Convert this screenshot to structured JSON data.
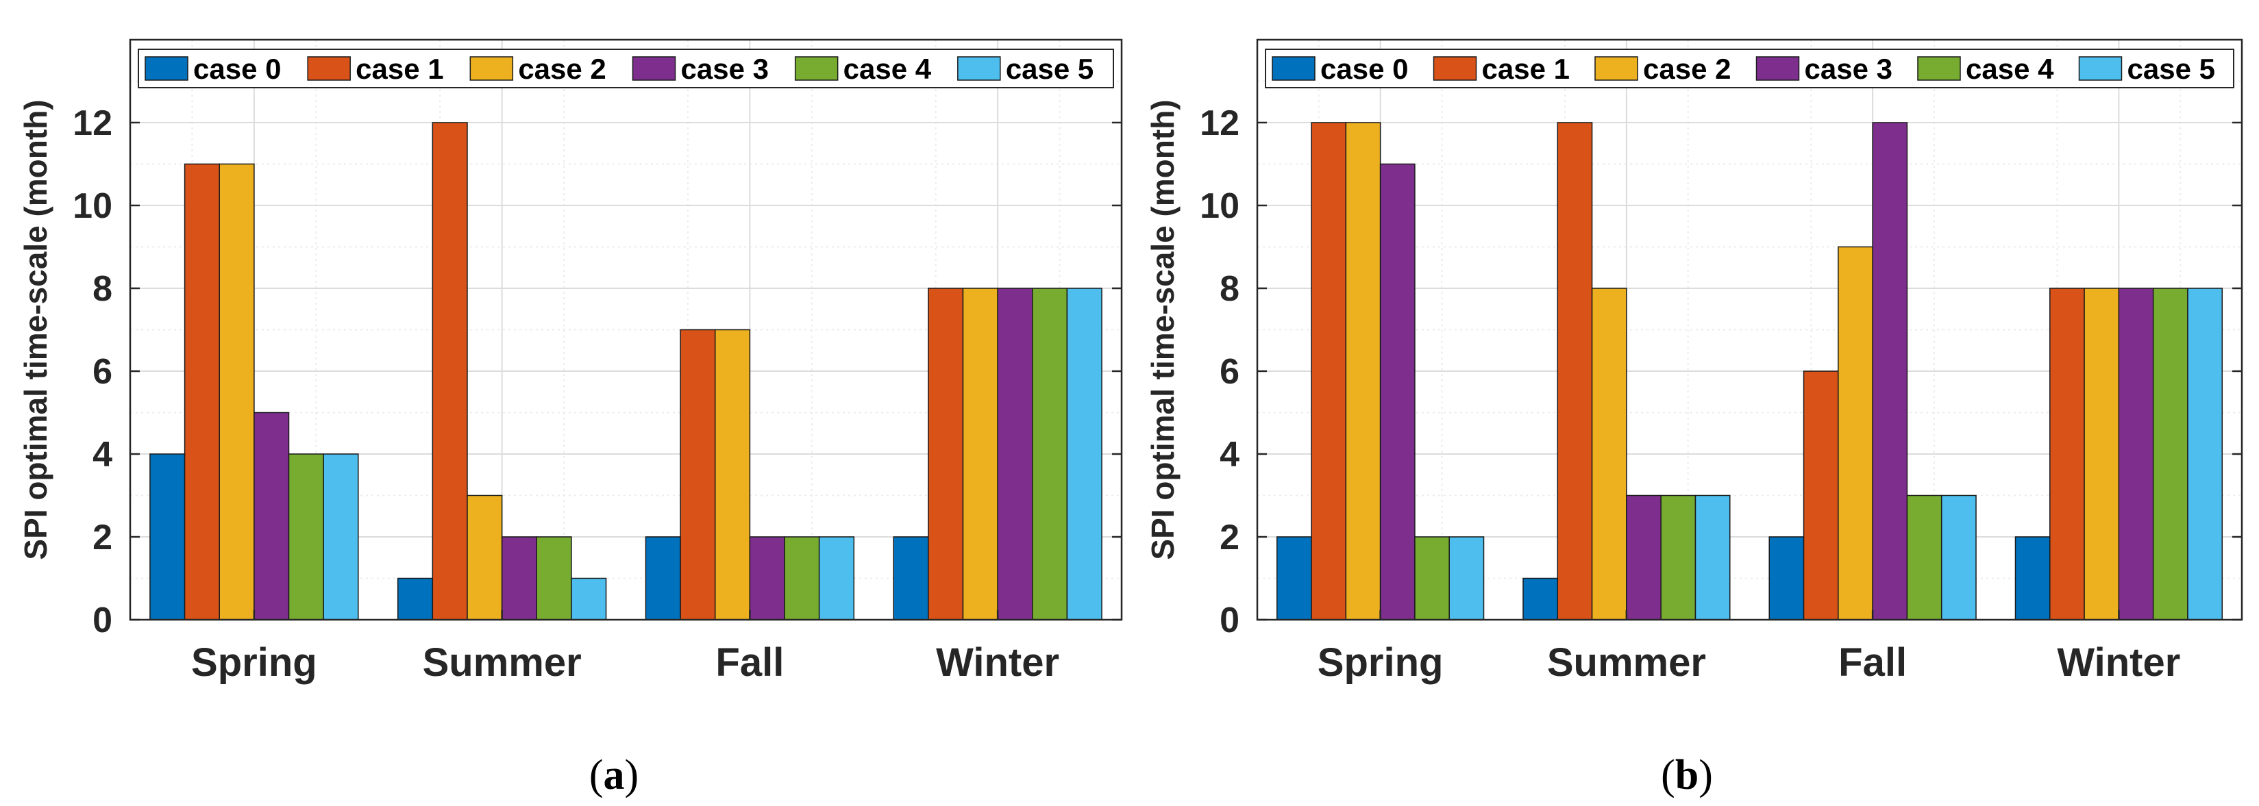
{
  "chart_data": [
    {
      "type": "bar",
      "panel_label": "a",
      "categories": [
        "Spring",
        "Summer",
        "Fall",
        "Winter"
      ],
      "series": [
        {
          "name": "case 0",
          "values": [
            4,
            1,
            2,
            2
          ]
        },
        {
          "name": "case 1",
          "values": [
            11,
            12,
            7,
            8
          ]
        },
        {
          "name": "case 2",
          "values": [
            11,
            3,
            7,
            8
          ]
        },
        {
          "name": "case 3",
          "values": [
            5,
            2,
            2,
            8
          ]
        },
        {
          "name": "case 4",
          "values": [
            4,
            2,
            2,
            8
          ]
        },
        {
          "name": "case 5",
          "values": [
            4,
            1,
            2,
            8
          ]
        }
      ],
      "title": "",
      "xlabel": "",
      "ylabel": "SPI optimal time-scale (month)",
      "ylim": [
        0,
        14
      ],
      "yticks": [
        0,
        2,
        4,
        6,
        8,
        10,
        12
      ],
      "grid": true,
      "legend": "top, horizontal"
    },
    {
      "type": "bar",
      "panel_label": "b",
      "categories": [
        "Spring",
        "Summer",
        "Fall",
        "Winter"
      ],
      "series": [
        {
          "name": "case 0",
          "values": [
            2,
            1,
            2,
            2
          ]
        },
        {
          "name": "case 1",
          "values": [
            12,
            12,
            6,
            8
          ]
        },
        {
          "name": "case 2",
          "values": [
            12,
            8,
            9,
            8
          ]
        },
        {
          "name": "case 3",
          "values": [
            11,
            3,
            12,
            8
          ]
        },
        {
          "name": "case 4",
          "values": [
            2,
            3,
            3,
            8
          ]
        },
        {
          "name": "case 5",
          "values": [
            2,
            3,
            3,
            8
          ]
        }
      ],
      "title": "",
      "xlabel": "",
      "ylabel": "SPI optimal time-scale (month)",
      "ylim": [
        0,
        14
      ],
      "yticks": [
        0,
        2,
        4,
        6,
        8,
        10,
        12
      ],
      "grid": true,
      "legend": "top, horizontal"
    }
  ],
  "colors": [
    "#0072BD",
    "#D95319",
    "#EDB120",
    "#7E2F8E",
    "#77AC30",
    "#4DBEEE"
  ]
}
